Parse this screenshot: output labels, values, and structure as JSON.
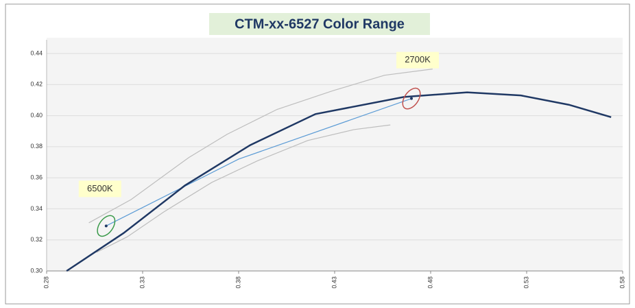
{
  "chart_data": {
    "type": "line",
    "title": "CTM-xx-6527 Color Range",
    "xlim": [
      0.28,
      0.58
    ],
    "xticks": [
      0.28,
      0.33,
      0.38,
      0.43,
      0.48,
      0.53,
      0.58
    ],
    "ylim": [
      0.3,
      0.44
    ],
    "yticks": [
      {
        "value": 0.3,
        "label": "0.30"
      },
      0.32,
      0.34,
      0.36,
      0.38,
      {
        "value": 0.4,
        "label": "0.40"
      },
      0.42,
      0.44
    ],
    "grid": true,
    "series": [
      {
        "color": "#bdbdbd",
        "x": [
          0.302,
          0.324,
          0.354,
          0.374,
          0.4,
          0.429,
          0.456,
          0.481
        ],
        "values": [
          0.331,
          0.346,
          0.373,
          0.388,
          0.404,
          0.416,
          0.426,
          0.43
        ]
      },
      {
        "color": "#bdbdbd",
        "x": [
          0.306,
          0.322,
          0.341,
          0.366,
          0.39,
          0.416,
          0.44,
          0.459
        ],
        "values": [
          0.312,
          0.322,
          0.338,
          0.357,
          0.371,
          0.384,
          0.391,
          0.394
        ]
      },
      {
        "color": "#5b9bd5",
        "x": [
          0.311,
          0.38,
          0.47
        ],
        "values": [
          0.329,
          0.372,
          0.411
        ]
      },
      {
        "color": "#1f3864",
        "x": [
          0.2904,
          0.32,
          0.352,
          0.386,
          0.42,
          0.466,
          0.499,
          0.527,
          0.552,
          0.574
        ],
        "values": [
          0.3,
          0.3243,
          0.355,
          0.381,
          0.401,
          0.412,
          0.415,
          0.413,
          0.407,
          0.399
        ]
      }
    ],
    "annotations": [
      {
        "text": "6500K",
        "x": 0.311,
        "y": 0.329,
        "color": "#3a9a4a"
      },
      {
        "text": "2700K",
        "x": 0.47,
        "y": 0.411,
        "color": "#c0504d"
      }
    ]
  }
}
